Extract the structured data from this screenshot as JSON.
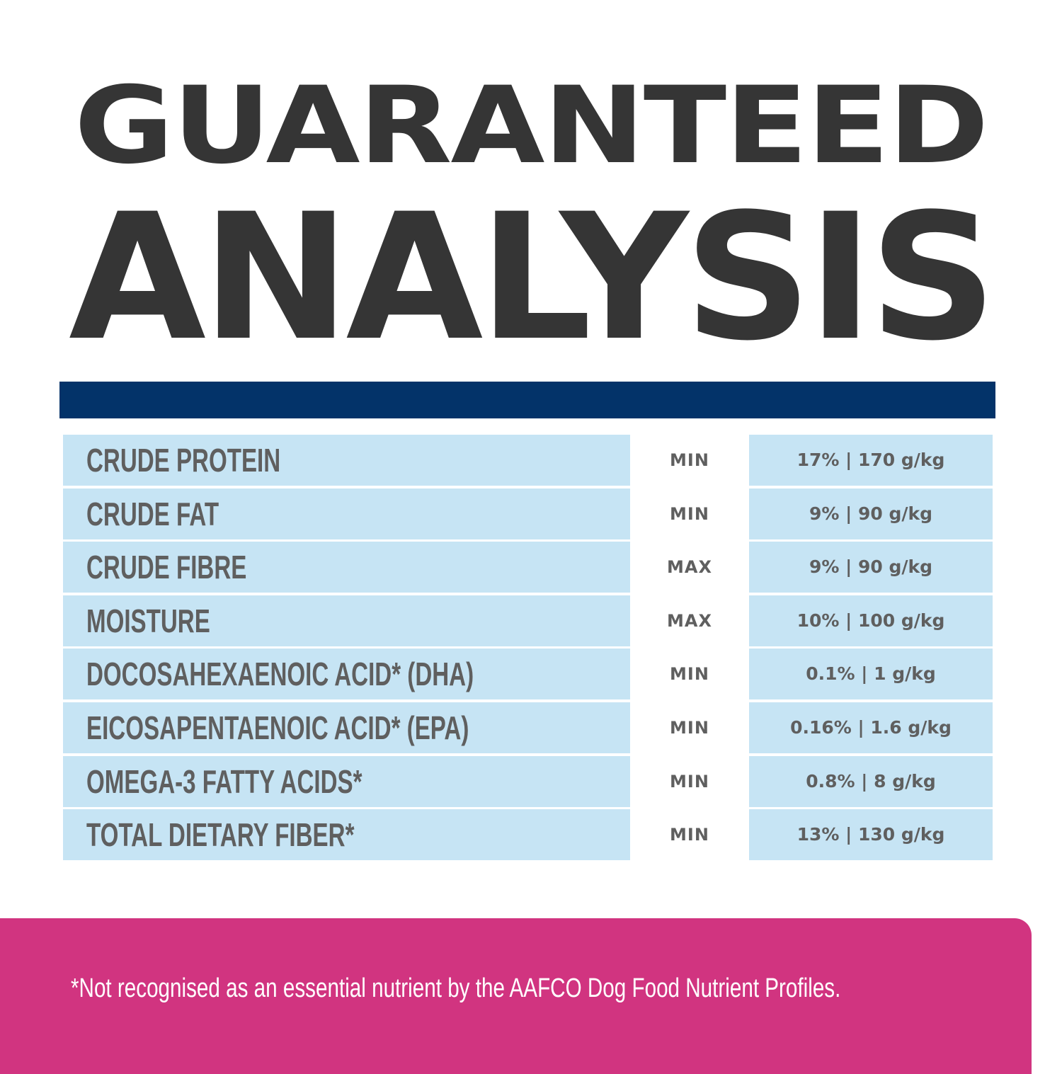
{
  "title": {
    "line1": "GUARANTEED",
    "line2": "ANALYSIS"
  },
  "colors": {
    "title": "#353535",
    "header_bar": "#033369",
    "cell_bg": "#c6e4f4",
    "text": "#5f5f5f",
    "footer_bg": "#d13480"
  },
  "rows": [
    {
      "name": "CRUDE PROTEIN",
      "qualifier": "MIN",
      "value": "17% | 170 g/kg"
    },
    {
      "name": "CRUDE FAT",
      "qualifier": "MIN",
      "value": "9% | 90 g/kg"
    },
    {
      "name": "CRUDE FIBRE",
      "qualifier": "MAX",
      "value": "9% | 90 g/kg"
    },
    {
      "name": "MOISTURE",
      "qualifier": "MAX",
      "value": "10% | 100 g/kg"
    },
    {
      "name": "DOCOSAHEXAENOIC ACID* (DHA)",
      "qualifier": "MIN",
      "value": "0.1% | 1 g/kg"
    },
    {
      "name": "EICOSAPENTAENOIC ACID* (EPA)",
      "qualifier": "MIN",
      "value": "0.16% | 1.6 g/kg"
    },
    {
      "name": "OMEGA-3 FATTY ACIDS*",
      "qualifier": "MIN",
      "value": "0.8% | 8 g/kg"
    },
    {
      "name": "TOTAL DIETARY FIBER*",
      "qualifier": "MIN",
      "value": "13% | 130 g/kg"
    }
  ],
  "footnote": "*Not recognised as an essential nutrient by the AAFCO Dog Food Nutrient Profiles."
}
